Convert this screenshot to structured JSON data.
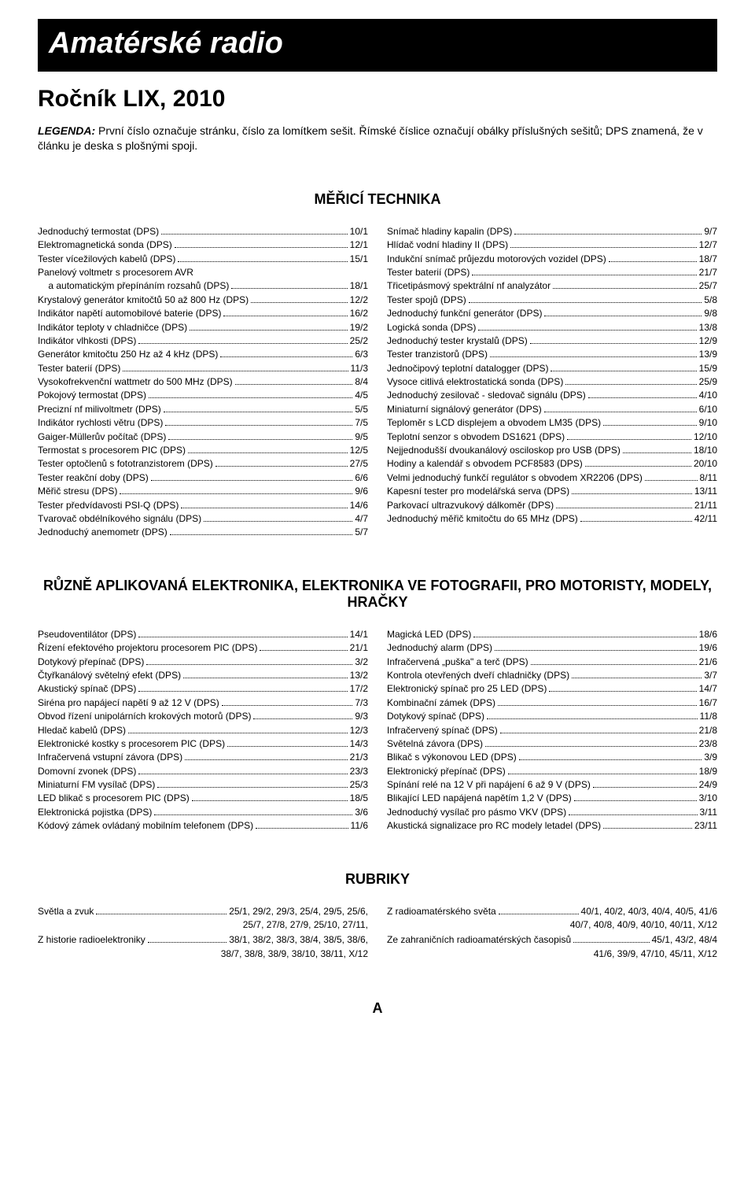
{
  "banner": "Amatérské radio",
  "subtitle": "Ročník LIX, 2010",
  "legenda_label": "LEGENDA:",
  "legenda_text": " První číslo označuje stránku, číslo za lomítkem sešit. Římské číslice označují obálky příslušných sešitů; DPS znamená, že v článku je deska s plošnými spoji.",
  "sections": [
    {
      "title": "MĚŘICÍ TECHNIKA",
      "left": [
        {
          "label": "Jednoduchý termostat (DPS)",
          "page": "10/1"
        },
        {
          "label": "Elektromagnetická sonda (DPS)",
          "page": "12/1"
        },
        {
          "label": "Tester vícežilových kabelů (DPS)",
          "page": "15/1"
        },
        {
          "label": "Panelový voltmetr s procesorem AVR",
          "page": ""
        },
        {
          "label": "    a automatickým přepínáním rozsahů (DPS)",
          "page": "18/1"
        },
        {
          "label": "Krystalový generátor kmitočtů 50 až 800 Hz (DPS)",
          "page": "12/2"
        },
        {
          "label": "Indikátor napětí automobilové baterie (DPS)",
          "page": "16/2"
        },
        {
          "label": "Indikátor teploty v chladničce (DPS)",
          "page": "19/2"
        },
        {
          "label": "Indikátor vlhkosti (DPS)",
          "page": "25/2"
        },
        {
          "label": "Generátor kmitočtu 250 Hz až 4 kHz (DPS)",
          "page": "6/3"
        },
        {
          "label": "Tester baterií (DPS)",
          "page": "11/3"
        },
        {
          "label": "Vysokofrekvenční wattmetr do 500 MHz (DPS)",
          "page": "8/4"
        },
        {
          "label": "Pokojový termostat (DPS)",
          "page": "4/5"
        },
        {
          "label": "Precizní nf milivoltmetr (DPS)",
          "page": "5/5"
        },
        {
          "label": "Indikátor rychlosti větru (DPS)",
          "page": "7/5"
        },
        {
          "label": "Gaiger-Müllerův počítač (DPS)",
          "page": "9/5"
        },
        {
          "label": "Termostat s procesorem PIC (DPS)",
          "page": "12/5"
        },
        {
          "label": "Tester optočlenů s fototranzistorem (DPS)",
          "page": "27/5"
        },
        {
          "label": "Tester reakční doby (DPS)",
          "page": "6/6"
        },
        {
          "label": "Měřič stresu (DPS)",
          "page": "9/6"
        },
        {
          "label": "Tester předvídavosti PSI-Q (DPS)",
          "page": "14/6"
        },
        {
          "label": "Tvarovač obdélníkového signálu (DPS)",
          "page": "4/7"
        },
        {
          "label": "Jednoduchý anemometr (DPS)",
          "page": "5/7"
        }
      ],
      "right": [
        {
          "label": "Snímač hladiny kapalin (DPS)",
          "page": "9/7"
        },
        {
          "label": "Hlídač vodní hladiny II (DPS)",
          "page": "12/7"
        },
        {
          "label": "Indukční snímač průjezdu motorových vozidel (DPS)",
          "page": "18/7"
        },
        {
          "label": "Tester baterií (DPS)",
          "page": "21/7"
        },
        {
          "label": "Třicetipásmový spektrální nf analyzátor",
          "page": "25/7"
        },
        {
          "label": "Tester spojů (DPS)",
          "page": "5/8"
        },
        {
          "label": "Jednoduchý funkční generátor (DPS)",
          "page": "9/8"
        },
        {
          "label": "Logická sonda (DPS)",
          "page": "13/8"
        },
        {
          "label": "Jednoduchý tester krystalů (DPS)",
          "page": "12/9"
        },
        {
          "label": "Tester tranzistorů (DPS)",
          "page": "13/9"
        },
        {
          "label": "Jednočipový teplotní datalogger (DPS)",
          "page": "15/9"
        },
        {
          "label": "Vysoce citlivá elektrostatická sonda (DPS)",
          "page": "25/9"
        },
        {
          "label": "Jednoduchý zesilovač - sledovač signálu (DPS)",
          "page": "4/10"
        },
        {
          "label": "Miniaturní signálový generátor (DPS)",
          "page": "6/10"
        },
        {
          "label": "Teploměr s LCD displejem a obvodem LM35 (DPS)",
          "page": "9/10"
        },
        {
          "label": "Teplotní senzor s obvodem DS1621 (DPS)",
          "page": "12/10"
        },
        {
          "label": "Nejjednodušší dvoukanálový osciloskop pro USB (DPS)",
          "page": "18/10"
        },
        {
          "label": "Hodiny a kalendář s obvodem PCF8583 (DPS)",
          "page": "20/10"
        },
        {
          "label": "Velmi jednoduchý funkčí regulátor s obvodem XR2206 (DPS)",
          "page": "8/11"
        },
        {
          "label": "Kapesní tester pro modelářská serva (DPS)",
          "page": "13/11"
        },
        {
          "label": "Parkovací ultrazvukový dálkoměr (DPS)",
          "page": "21/11"
        },
        {
          "label": "Jednoduchý měřič kmitočtu do 65 MHz (DPS)",
          "page": "42/11"
        }
      ]
    },
    {
      "title": "RŮZNĚ APLIKOVANÁ ELEKTRONIKA, ELEKTRONIKA VE FOTOGRAFII, PRO MOTORISTY, MODELY, HRAČKY",
      "left": [
        {
          "label": "Pseudoventilátor (DPS)",
          "page": "14/1"
        },
        {
          "label": "Řízení efektového projektoru procesorem PIC (DPS)",
          "page": "21/1"
        },
        {
          "label": "Dotykový přepínač (DPS)",
          "page": "3/2"
        },
        {
          "label": "Čtyřkanálový světelný efekt (DPS)",
          "page": "13/2"
        },
        {
          "label": "Akustický spínač (DPS)",
          "page": "17/2"
        },
        {
          "label": "Siréna pro napájecí napětí 9 až 12 V (DPS)",
          "page": "7/3"
        },
        {
          "label": "Obvod řízení unipolárních krokových motorů (DPS)",
          "page": "9/3"
        },
        {
          "label": "Hledač kabelů (DPS)",
          "page": "12/3"
        },
        {
          "label": "Elektronické kostky s procesorem PIC (DPS)",
          "page": "14/3"
        },
        {
          "label": "Infračervená vstupní závora (DPS)",
          "page": "21/3"
        },
        {
          "label": "Domovní zvonek (DPS)",
          "page": "23/3"
        },
        {
          "label": "Miniaturní FM vysílač (DPS)",
          "page": "25/3"
        },
        {
          "label": "LED blikač s procesorem PIC (DPS)",
          "page": "18/5"
        },
        {
          "label": "Elektronická pojistka (DPS)",
          "page": "3/6"
        },
        {
          "label": "Kódový zámek ovládaný mobilním telefonem (DPS)",
          "page": "11/6"
        }
      ],
      "right": [
        {
          "label": "Magická LED (DPS)",
          "page": "18/6"
        },
        {
          "label": "Jednoduchý alarm (DPS)",
          "page": "19/6"
        },
        {
          "label": "Infračervená „puška\" a terč (DPS)",
          "page": "21/6"
        },
        {
          "label": "Kontrola otevřených dveří chladničky (DPS)",
          "page": "3/7"
        },
        {
          "label": "Elektronický spínač pro 25 LED (DPS)",
          "page": "14/7"
        },
        {
          "label": "Kombinační zámek (DPS)",
          "page": "16/7"
        },
        {
          "label": "Dotykový spínač (DPS)",
          "page": "11/8"
        },
        {
          "label": "Infračervený spínač (DPS)",
          "page": "21/8"
        },
        {
          "label": "Světelná závora (DPS)",
          "page": "23/8"
        },
        {
          "label": "Blikač s výkonovou LED (DPS)",
          "page": "3/9"
        },
        {
          "label": "Elektronický přepínač (DPS)",
          "page": "18/9"
        },
        {
          "label": "Spínání relé na 12 V při napájení 6 až 9 V (DPS)",
          "page": "24/9"
        },
        {
          "label": "Blikající LED napájená napětím 1,2 V (DPS)",
          "page": "3/10"
        },
        {
          "label": "Jednoduchý vysílač pro pásmo VKV (DPS)",
          "page": "3/11"
        },
        {
          "label": "Akustická signalizace pro RC modely letadel (DPS)",
          "page": "23/11"
        }
      ]
    }
  ],
  "rubriky": {
    "title": "RUBRIKY",
    "left": [
      {
        "lead": "Světla a zvuk",
        "first": "25/1, 29/2, 29/3, 25/4, 29/5, 25/6,",
        "rest": "25/7, 27/8, 27/9, 25/10, 27/11,"
      },
      {
        "lead": "Z historie radioelektroniky",
        "first": "38/1, 38/2, 38/3, 38/4, 38/5, 38/6,",
        "rest": "38/7, 38/8, 38/9, 38/10, 38/11, X/12"
      }
    ],
    "right": [
      {
        "lead": "Z radioamatérského světa",
        "first": "40/1, 40/2, 40/3, 40/4, 40/5, 41/6",
        "rest": "40/7, 40/8, 40/9, 40/10, 40/11, X/12"
      },
      {
        "lead": "Ze zahraničních radioamatérských časopisů",
        "first": "45/1, 43/2, 48/4",
        "rest": "41/6, 39/9, 47/10, 45/11, X/12"
      }
    ]
  },
  "footer_letter": "A"
}
